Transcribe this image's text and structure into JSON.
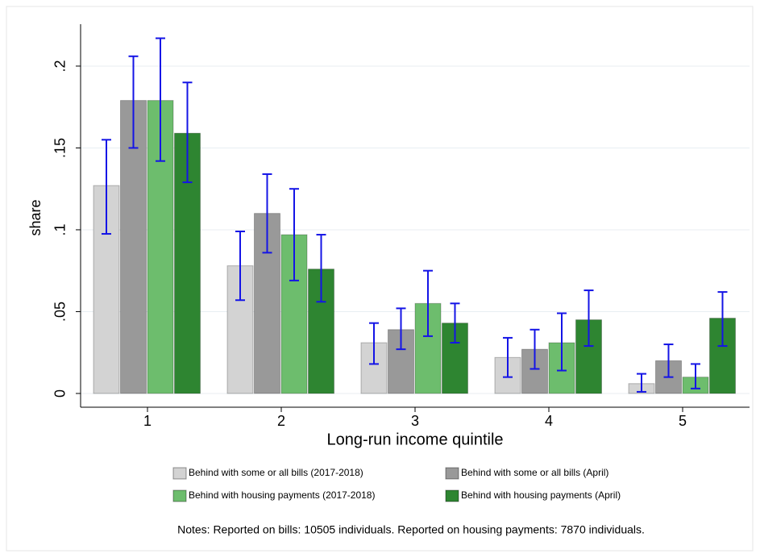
{
  "chart_data": {
    "type": "bar",
    "x_label": "Long-run income quintile",
    "y_label": "share",
    "categories": [
      "1",
      "2",
      "3",
      "4",
      "5"
    ],
    "series": [
      {
        "name": "Behind with some or all bills (2017-2018)",
        "color": "#d3d3d3",
        "values": [
          0.127,
          0.078,
          0.031,
          0.022,
          0.006
        ],
        "ci_low": [
          0.0975,
          0.057,
          0.018,
          0.01,
          0.001
        ],
        "ci_high": [
          0.155,
          0.099,
          0.043,
          0.034,
          0.012
        ]
      },
      {
        "name": "Behind with some or all bills (April)",
        "color": "#999999",
        "values": [
          0.179,
          0.11,
          0.039,
          0.027,
          0.02
        ],
        "ci_low": [
          0.15,
          0.086,
          0.027,
          0.015,
          0.01
        ],
        "ci_high": [
          0.206,
          0.134,
          0.052,
          0.039,
          0.03
        ]
      },
      {
        "name": "Behind with housing payments (2017-2018)",
        "color": "#6dbd6d",
        "values": [
          0.179,
          0.097,
          0.055,
          0.031,
          0.01
        ],
        "ci_low": [
          0.142,
          0.069,
          0.035,
          0.014,
          0.003
        ],
        "ci_high": [
          0.217,
          0.125,
          0.075,
          0.049,
          0.018
        ]
      },
      {
        "name": "Behind with housing payments (April)",
        "color": "#2e8531",
        "values": [
          0.159,
          0.076,
          0.043,
          0.045,
          0.046
        ],
        "ci_low": [
          0.129,
          0.056,
          0.031,
          0.029,
          0.029
        ],
        "ci_high": [
          0.19,
          0.097,
          0.055,
          0.063,
          0.062
        ]
      }
    ],
    "error_color": "#1414e6",
    "ylim": [
      -0.0084,
      0.2256
    ],
    "yticks": [
      0,
      {
        "value": 0.05,
        "label": ".05"
      },
      {
        "value": 0.1,
        "label": ".1"
      },
      {
        "value": 0.15,
        "label": ".15"
      },
      {
        "value": 0.2,
        "label": ".2"
      }
    ],
    "grid": true,
    "notes": "Notes: Reported on bills: 10505 individuals. Reported on housing payments: 7870 individuals."
  }
}
